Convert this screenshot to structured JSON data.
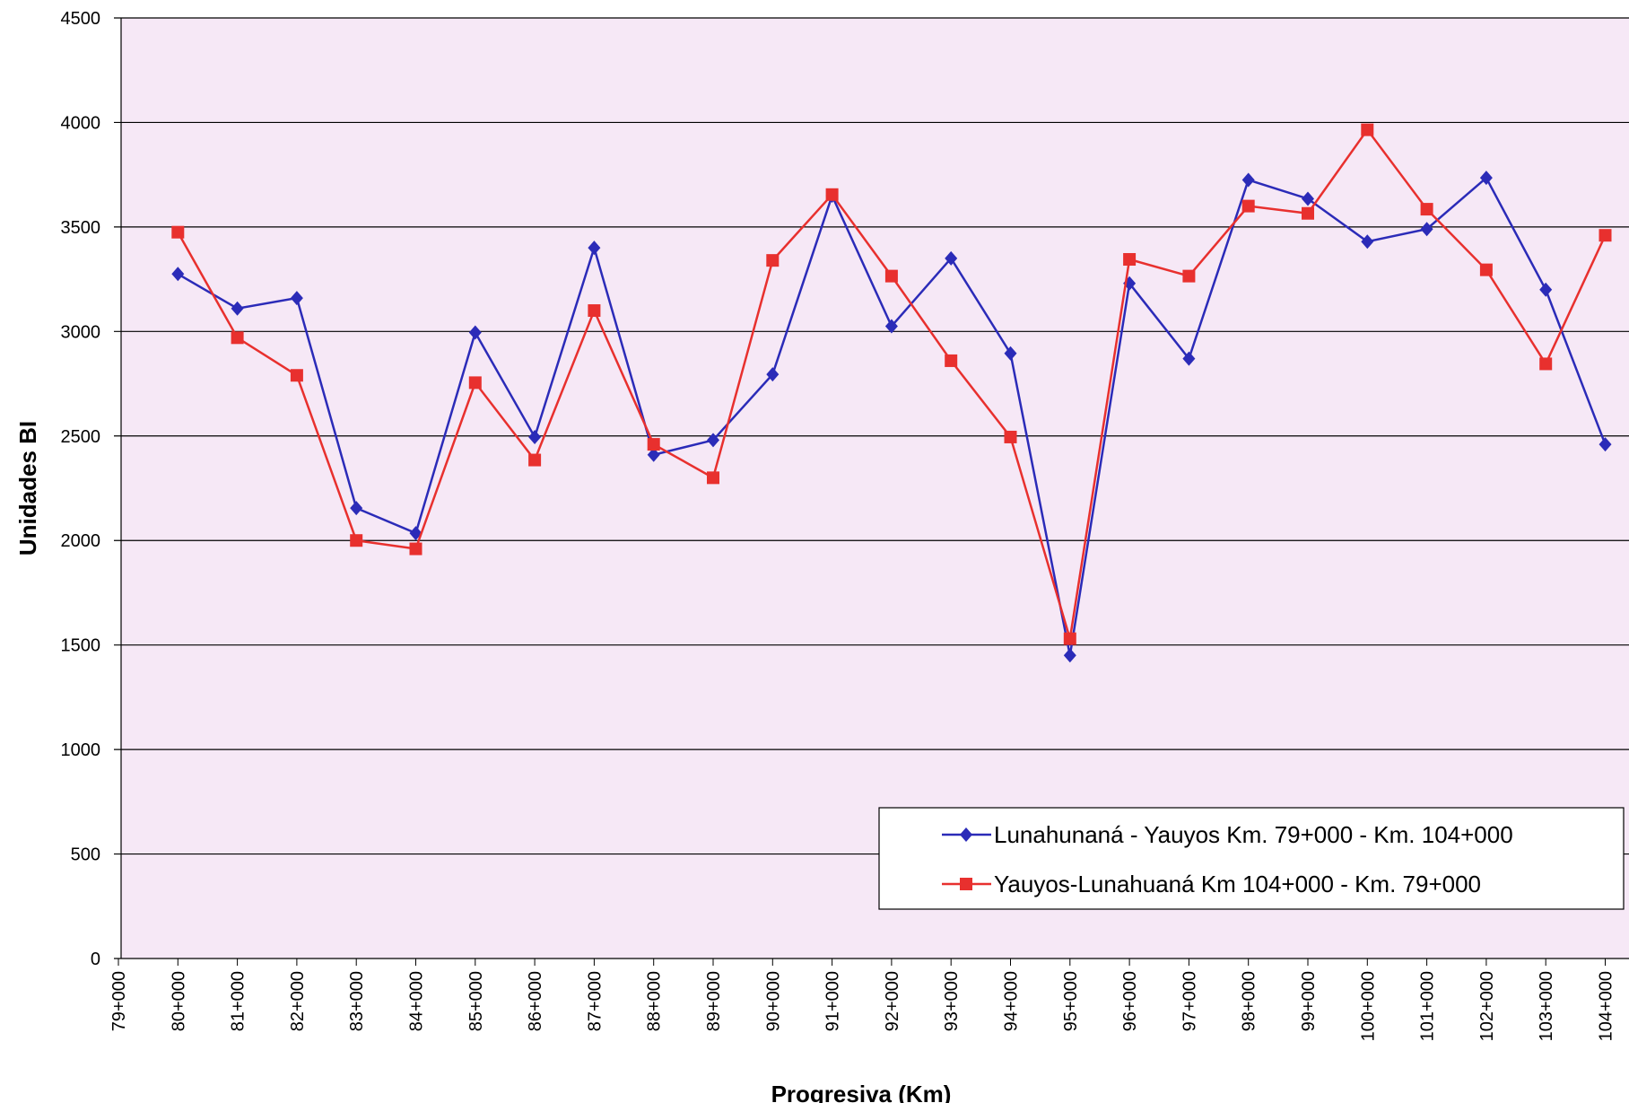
{
  "chart_data": {
    "type": "line",
    "y_label": "Unidades BI",
    "x_label": "Progresiva (Km)",
    "categories": [
      "79+000",
      "80+000",
      "81+000",
      "82+000",
      "83+000",
      "84+000",
      "85+000",
      "86+000",
      "87+000",
      "88+000",
      "89+000",
      "90+000",
      "91+000",
      "92+000",
      "93+000",
      "94+000",
      "95+000",
      "96+000",
      "97+000",
      "98+000",
      "99+000",
      "100+000",
      "101+000",
      "102+000",
      "103+000",
      "104+000"
    ],
    "series": [
      {
        "name": "Lunahunaná - Yauyos Km. 79+000 - Km. 104+000",
        "color": "#2b2bb8",
        "marker": "diamond",
        "values": [
          null,
          3275,
          3110,
          3160,
          2155,
          2035,
          2995,
          2495,
          3400,
          2410,
          2480,
          2795,
          3650,
          3025,
          3350,
          2895,
          1450,
          3230,
          2870,
          3725,
          3635,
          3430,
          3490,
          3735,
          3200,
          2460
        ]
      },
      {
        "name": "Yauyos-Lunahuaná Km 104+000 - Km. 79+000",
        "color": "#e8302e",
        "marker": "square",
        "values": [
          null,
          3475,
          2970,
          2790,
          2000,
          1960,
          2755,
          2385,
          3100,
          2460,
          2300,
          3340,
          3655,
          3265,
          2860,
          2495,
          1530,
          3345,
          3265,
          3600,
          3565,
          3965,
          3585,
          3295,
          2845,
          3460
        ]
      }
    ],
    "ylim": [
      0,
      4500
    ],
    "yticks": [
      0,
      500,
      1000,
      1500,
      2000,
      2500,
      3000,
      3500,
      4000,
      4500
    ],
    "grid": true,
    "legend": "lower right"
  }
}
